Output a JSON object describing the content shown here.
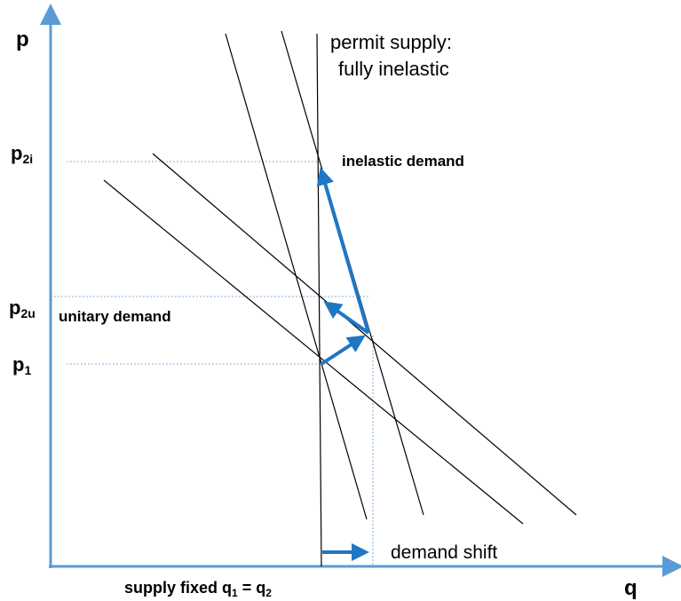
{
  "axes": {
    "y_label": "p",
    "x_label": "q"
  },
  "price_labels": [
    {
      "base": "p",
      "sub": "2i"
    },
    {
      "base": "p",
      "sub": "2u"
    },
    {
      "base": "p",
      "sub": "1"
    }
  ],
  "supply_label": [
    "permit supply:",
    "fully inelastic"
  ],
  "inelastic_label": "inelastic demand",
  "unitary_label": "unitary demand",
  "shift_label": "demand shift",
  "quantity_label": {
    "text": "supply fixed q",
    "sub1": "1",
    "mid": " = q",
    "sub2": "2"
  }
}
